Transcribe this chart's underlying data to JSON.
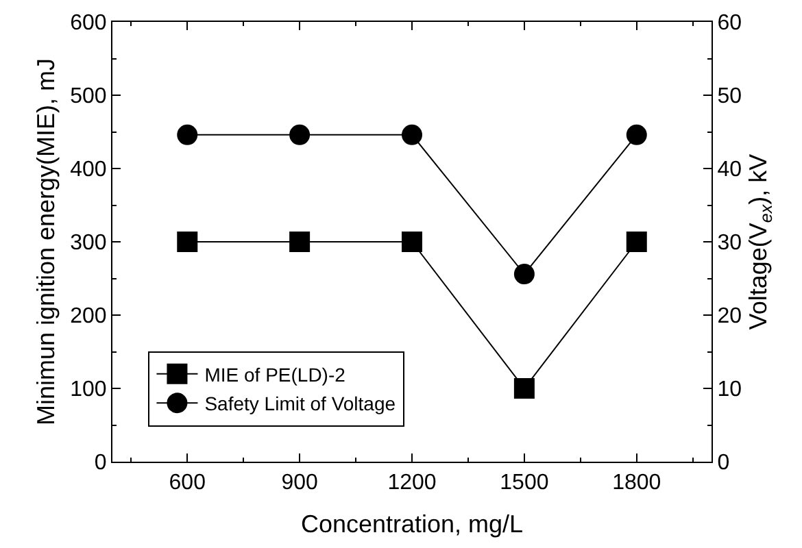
{
  "chart_data": {
    "type": "line",
    "xlabel": "Concentration, mg/L",
    "ylabel": "Minimun ignition energy(MIE), mJ",
    "y2label": "Voltage(V$_{ex}$), kV",
    "x": [
      600,
      900,
      1200,
      1500,
      1800
    ],
    "series": [
      {
        "name": "MIE of PE(LD)-2",
        "color": "#000000",
        "marker": "square",
        "values": [
          300,
          300,
          300,
          100,
          300
        ]
      },
      {
        "name": "Safety Limit of Voltage",
        "color": "#000000",
        "marker": "circle",
        "axis": "y2",
        "values": [
          44.6,
          44.6,
          44.6,
          25.6,
          44.6
        ]
      }
    ],
    "xlim": [
      400,
      2000
    ],
    "xticks": [
      600,
      900,
      1200,
      1500,
      1800
    ],
    "ylim": [
      0,
      600
    ],
    "yticks": [
      0,
      100,
      200,
      300,
      400,
      500,
      600
    ],
    "y2lim": [
      0,
      60
    ],
    "y2ticks": [
      0,
      10,
      20,
      30,
      40,
      50,
      60
    ],
    "legend": "bottom left",
    "line_style": "solid"
  }
}
